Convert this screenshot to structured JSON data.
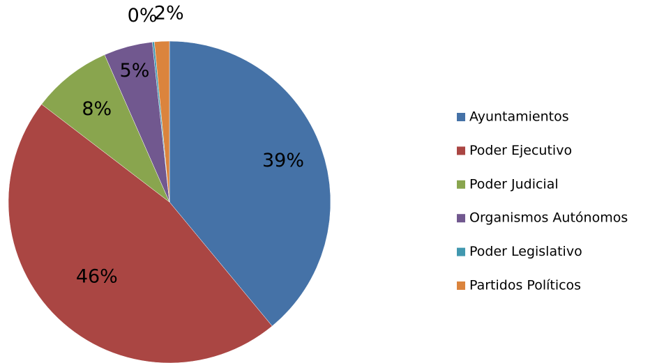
{
  "chart_data": {
    "type": "pie",
    "categories": [
      "Ayuntamientos",
      "Poder Ejecutivo",
      "Poder Judicial",
      "Organismos Autónomos",
      "Poder Legislativo",
      "Partidos Políticos"
    ],
    "values": [
      39,
      46.4,
      8,
      4.9,
      0.2,
      1.5
    ],
    "value_labels": [
      "39%",
      "46%",
      "8%",
      "5%",
      "0%",
      "2%"
    ],
    "colors": [
      "#4572a7",
      "#aa4643",
      "#89a54e",
      "#71588f",
      "#4198af",
      "#db843d"
    ],
    "legend": "right"
  }
}
